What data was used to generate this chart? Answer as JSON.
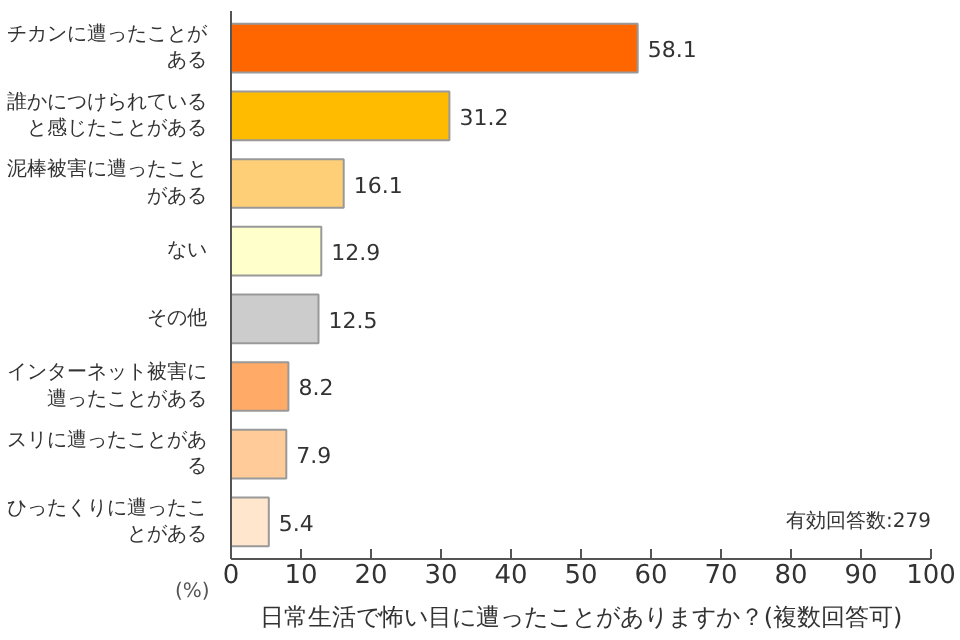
{
  "chart_data": {
    "type": "bar",
    "orientation": "horizontal",
    "title": "日常生活で怖い目に遭ったことがありますか？(複数回答可)",
    "xlabel": "(%)",
    "categories": [
      "チカンに遭ったことがある",
      "誰かにつけられていると感じたことがある",
      "泥棒被害に遭ったことがある",
      "ない",
      "その他",
      "インターネット被害に遭ったことがある",
      "スリに遭ったことがある",
      "ひったくりに遭ったことがある"
    ],
    "values": [
      58.1,
      31.2,
      16.1,
      12.9,
      12.5,
      8.2,
      7.9,
      5.4
    ],
    "colors": [
      "#ff6600",
      "#ffbb00",
      "#ffcf77",
      "#ffffcc",
      "#cccccc",
      "#ffaa66",
      "#ffcc99",
      "#ffe6cc"
    ],
    "data_labels": true,
    "xlim": [
      0,
      100
    ],
    "xticks": [
      0,
      10,
      20,
      30,
      40,
      50,
      60,
      70,
      80,
      90,
      100
    ],
    "grid": false,
    "annotations": [
      "有効回答数:279"
    ]
  }
}
